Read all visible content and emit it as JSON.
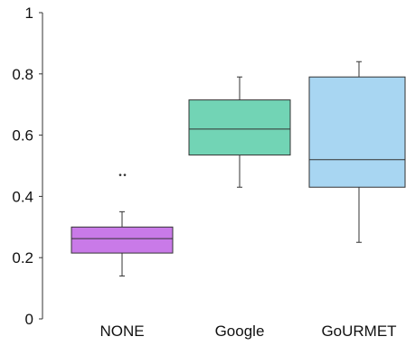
{
  "chart_data": {
    "type": "box",
    "title": "",
    "xlabel": "",
    "ylabel": "",
    "ylim": [
      0,
      1
    ],
    "yticks": [
      {
        "value": 0,
        "label": "0"
      },
      {
        "value": 0.2,
        "label": "0.2"
      },
      {
        "value": 0.4,
        "label": "0.4"
      },
      {
        "value": 0.6,
        "label": "0.6"
      },
      {
        "value": 0.8,
        "label": "0.8"
      },
      {
        "value": 1,
        "label": "1"
      }
    ],
    "grid": false,
    "categories": [
      "NONE",
      "Google",
      "GoURMET"
    ],
    "boxes": [
      {
        "category": "NONE",
        "color": "#c97ae8",
        "whisker_low": 0.14,
        "q1": 0.215,
        "median": 0.262,
        "q3": 0.3,
        "whisker_high": 0.35,
        "outliers": [
          0.47,
          0.47
        ]
      },
      {
        "category": "Google",
        "color": "#72d4b5",
        "whisker_low": 0.43,
        "q1": 0.535,
        "median": 0.62,
        "q3": 0.715,
        "whisker_high": 0.79,
        "outliers": []
      },
      {
        "category": "GoURMET",
        "color": "#a8d6f2",
        "whisker_low": 0.25,
        "q1": 0.43,
        "median": 0.52,
        "q3": 0.79,
        "whisker_high": 0.84,
        "outliers": []
      }
    ]
  }
}
